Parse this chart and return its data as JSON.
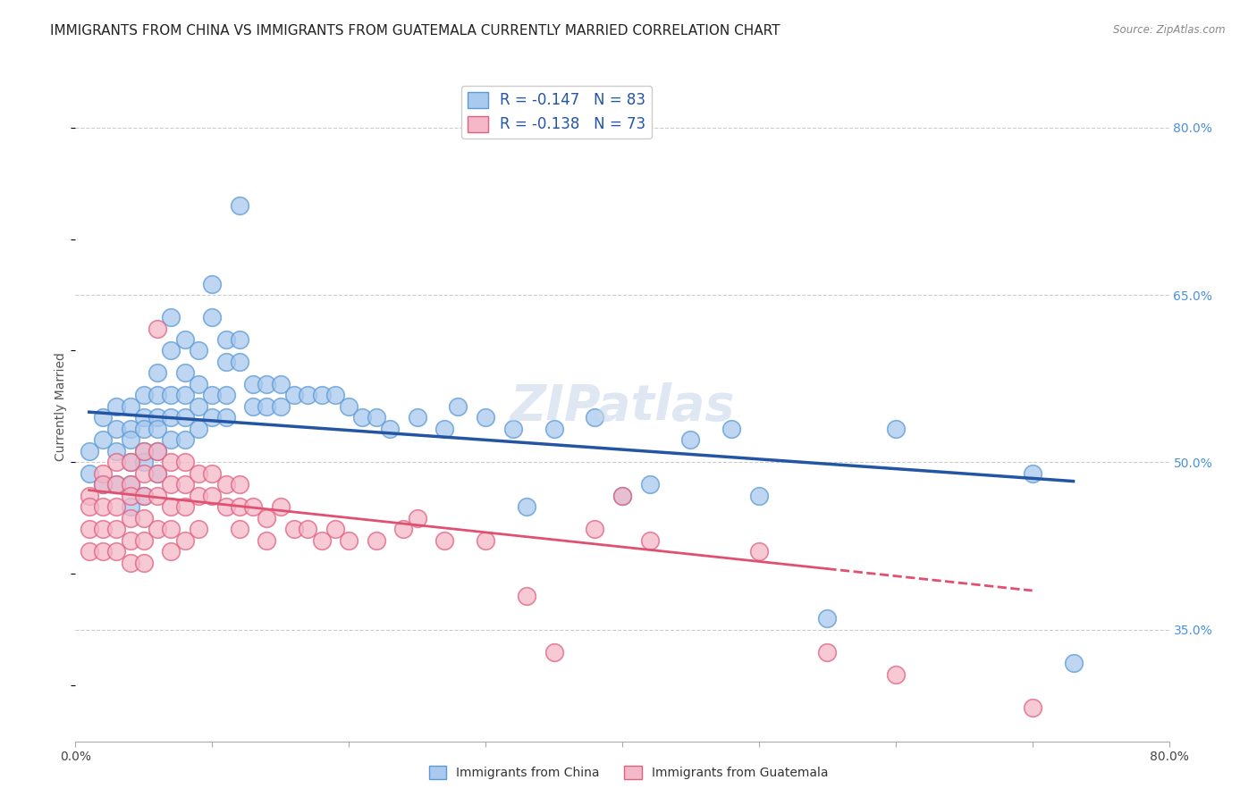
{
  "title": "IMMIGRANTS FROM CHINA VS IMMIGRANTS FROM GUATEMALA CURRENTLY MARRIED CORRELATION CHART",
  "source": "Source: ZipAtlas.com",
  "ylabel": "Currently Married",
  "xlim": [
    0.0,
    0.8
  ],
  "ylim": [
    0.25,
    0.85
  ],
  "xticks": [
    0.0,
    0.1,
    0.2,
    0.3,
    0.4,
    0.5,
    0.6,
    0.7,
    0.8
  ],
  "xticklabels": [
    "0.0%",
    "",
    "",
    "",
    "",
    "",
    "",
    "",
    "80.0%"
  ],
  "ytick_positions": [
    0.35,
    0.5,
    0.65,
    0.8
  ],
  "ytick_labels": [
    "35.0%",
    "50.0%",
    "65.0%",
    "80.0%"
  ],
  "legend_label_china": "R = -0.147   N = 83",
  "legend_label_guatemala": "R = -0.138   N = 73",
  "watermark": "ZIPatlas",
  "china_color": "#aac9ee",
  "china_edge_color": "#5b9bd5",
  "guatemala_color": "#f4b8c8",
  "guatemala_edge_color": "#e06080",
  "trendline_china_color": "#2455a4",
  "trendline_guatemala_color": "#e05070",
  "background_color": "#ffffff",
  "grid_color": "#cccccc",
  "title_fontsize": 11,
  "axis_label_fontsize": 10,
  "tick_fontsize": 10,
  "legend_fontsize": 12,
  "watermark_fontsize": 40,
  "watermark_color": "#c8d8ea",
  "watermark_alpha": 0.6,
  "china_x": [
    0.01,
    0.01,
    0.02,
    0.02,
    0.02,
    0.03,
    0.03,
    0.03,
    0.03,
    0.04,
    0.04,
    0.04,
    0.04,
    0.04,
    0.04,
    0.05,
    0.05,
    0.05,
    0.05,
    0.05,
    0.05,
    0.06,
    0.06,
    0.06,
    0.06,
    0.06,
    0.06,
    0.07,
    0.07,
    0.07,
    0.07,
    0.07,
    0.08,
    0.08,
    0.08,
    0.08,
    0.08,
    0.09,
    0.09,
    0.09,
    0.09,
    0.1,
    0.1,
    0.1,
    0.1,
    0.11,
    0.11,
    0.11,
    0.11,
    0.12,
    0.12,
    0.12,
    0.13,
    0.13,
    0.14,
    0.14,
    0.15,
    0.15,
    0.16,
    0.17,
    0.18,
    0.19,
    0.2,
    0.21,
    0.22,
    0.23,
    0.25,
    0.27,
    0.28,
    0.3,
    0.32,
    0.33,
    0.35,
    0.38,
    0.4,
    0.42,
    0.45,
    0.48,
    0.5,
    0.55,
    0.6,
    0.7,
    0.73
  ],
  "china_y": [
    0.51,
    0.49,
    0.54,
    0.52,
    0.48,
    0.55,
    0.53,
    0.51,
    0.48,
    0.55,
    0.53,
    0.52,
    0.5,
    0.48,
    0.46,
    0.56,
    0.54,
    0.53,
    0.51,
    0.5,
    0.47,
    0.58,
    0.56,
    0.54,
    0.53,
    0.51,
    0.49,
    0.63,
    0.6,
    0.56,
    0.54,
    0.52,
    0.61,
    0.58,
    0.56,
    0.54,
    0.52,
    0.6,
    0.57,
    0.55,
    0.53,
    0.66,
    0.63,
    0.56,
    0.54,
    0.61,
    0.59,
    0.56,
    0.54,
    0.73,
    0.61,
    0.59,
    0.57,
    0.55,
    0.57,
    0.55,
    0.57,
    0.55,
    0.56,
    0.56,
    0.56,
    0.56,
    0.55,
    0.54,
    0.54,
    0.53,
    0.54,
    0.53,
    0.55,
    0.54,
    0.53,
    0.46,
    0.53,
    0.54,
    0.47,
    0.48,
    0.52,
    0.53,
    0.47,
    0.36,
    0.53,
    0.49,
    0.32
  ],
  "guatemala_x": [
    0.01,
    0.01,
    0.01,
    0.01,
    0.02,
    0.02,
    0.02,
    0.02,
    0.02,
    0.03,
    0.03,
    0.03,
    0.03,
    0.03,
    0.04,
    0.04,
    0.04,
    0.04,
    0.04,
    0.04,
    0.05,
    0.05,
    0.05,
    0.05,
    0.05,
    0.05,
    0.06,
    0.06,
    0.06,
    0.06,
    0.06,
    0.07,
    0.07,
    0.07,
    0.07,
    0.07,
    0.08,
    0.08,
    0.08,
    0.08,
    0.09,
    0.09,
    0.09,
    0.1,
    0.1,
    0.11,
    0.11,
    0.12,
    0.12,
    0.12,
    0.13,
    0.14,
    0.14,
    0.15,
    0.16,
    0.17,
    0.18,
    0.19,
    0.2,
    0.22,
    0.24,
    0.25,
    0.27,
    0.3,
    0.33,
    0.35,
    0.38,
    0.4,
    0.42,
    0.5,
    0.55,
    0.6,
    0.7
  ],
  "guatemala_y": [
    0.47,
    0.46,
    0.44,
    0.42,
    0.49,
    0.48,
    0.46,
    0.44,
    0.42,
    0.5,
    0.48,
    0.46,
    0.44,
    0.42,
    0.5,
    0.48,
    0.47,
    0.45,
    0.43,
    0.41,
    0.51,
    0.49,
    0.47,
    0.45,
    0.43,
    0.41,
    0.62,
    0.51,
    0.49,
    0.47,
    0.44,
    0.5,
    0.48,
    0.46,
    0.44,
    0.42,
    0.5,
    0.48,
    0.46,
    0.43,
    0.49,
    0.47,
    0.44,
    0.49,
    0.47,
    0.48,
    0.46,
    0.48,
    0.46,
    0.44,
    0.46,
    0.45,
    0.43,
    0.46,
    0.44,
    0.44,
    0.43,
    0.44,
    0.43,
    0.43,
    0.44,
    0.45,
    0.43,
    0.43,
    0.38,
    0.33,
    0.44,
    0.47,
    0.43,
    0.42,
    0.33,
    0.31,
    0.28
  ],
  "trendline_china_x0": 0.01,
  "trendline_china_x1": 0.73,
  "trendline_china_y0": 0.545,
  "trendline_china_y1": 0.483,
  "trendline_guatemala_x0": 0.01,
  "trendline_guatemala_x1": 0.7,
  "trendline_guatemala_y0": 0.475,
  "trendline_guatemala_y1": 0.385
}
